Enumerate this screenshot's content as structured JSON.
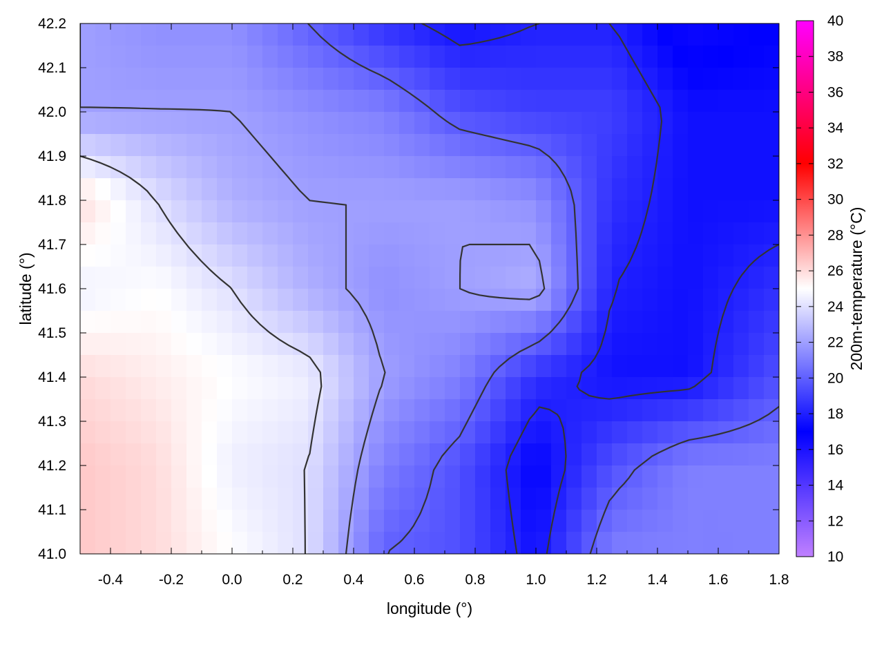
{
  "chart_data": {
    "type": "heatmap",
    "title": "",
    "xlabel": "longitude (°)",
    "ylabel": "latitude (°)",
    "colorbar_label": "200m-temperature (°C)",
    "xlim": [
      -0.5,
      1.8
    ],
    "ylim": [
      41.0,
      42.2
    ],
    "x_ticks": [
      {
        "value": -0.4,
        "label": "-0.4"
      },
      {
        "value": -0.2,
        "label": "-0.2"
      },
      {
        "value": 0.0,
        "label": "0.0"
      },
      {
        "value": 0.2,
        "label": "0.2"
      },
      {
        "value": 0.4,
        "label": "0.4"
      },
      {
        "value": 0.6,
        "label": "0.6"
      },
      {
        "value": 0.8,
        "label": "0.8"
      },
      {
        "value": 1.0,
        "label": "1.0"
      },
      {
        "value": 1.2,
        "label": "1.2"
      },
      {
        "value": 1.4,
        "label": "1.4"
      },
      {
        "value": 1.6,
        "label": "1.6"
      },
      {
        "value": 1.8,
        "label": "1.8"
      }
    ],
    "y_ticks": [
      {
        "value": 41.0,
        "label": "41.0"
      },
      {
        "value": 41.1,
        "label": "41.1"
      },
      {
        "value": 41.2,
        "label": "41.2"
      },
      {
        "value": 41.3,
        "label": "41.3"
      },
      {
        "value": 41.4,
        "label": "41.4"
      },
      {
        "value": 41.5,
        "label": "41.5"
      },
      {
        "value": 41.6,
        "label": "41.6"
      },
      {
        "value": 41.7,
        "label": "41.7"
      },
      {
        "value": 41.8,
        "label": "41.8"
      },
      {
        "value": 41.9,
        "label": "41.9"
      },
      {
        "value": 42.0,
        "label": "42.0"
      },
      {
        "value": 42.1,
        "label": "42.1"
      },
      {
        "value": 42.2,
        "label": "42.2"
      }
    ],
    "colorbar_ticks": [
      {
        "value": 10,
        "label": "10"
      },
      {
        "value": 12,
        "label": "12"
      },
      {
        "value": 14,
        "label": "14"
      },
      {
        "value": 16,
        "label": "16"
      },
      {
        "value": 18,
        "label": "18"
      },
      {
        "value": 20,
        "label": "20"
      },
      {
        "value": 22,
        "label": "22"
      },
      {
        "value": 24,
        "label": "24"
      },
      {
        "value": 26,
        "label": "26"
      },
      {
        "value": 28,
        "label": "28"
      },
      {
        "value": 30,
        "label": "30"
      },
      {
        "value": 32,
        "label": "32"
      },
      {
        "value": 34,
        "label": "34"
      },
      {
        "value": 36,
        "label": "36"
      },
      {
        "value": 38,
        "label": "38"
      },
      {
        "value": 40,
        "label": "40"
      }
    ],
    "zlim": [
      10,
      40
    ],
    "colormap": [
      {
        "value": 10,
        "color": "#c080ff"
      },
      {
        "value": 17,
        "color": "#0000ff"
      },
      {
        "value": 25,
        "color": "#ffffff"
      },
      {
        "value": 32,
        "color": "#ff0000"
      },
      {
        "value": 40,
        "color": "#ff00ff"
      }
    ],
    "contour_color": "#333333",
    "temperature_field": {
      "description_free": true,
      "x": [
        -0.5,
        -0.25,
        0.0,
        0.25,
        0.5,
        0.75,
        1.0,
        1.25,
        1.5,
        1.8
      ],
      "y": [
        41.0,
        41.2,
        41.4,
        41.6,
        41.8,
        42.0,
        42.2
      ],
      "z": [
        [
          26.5,
          26.0,
          25.0,
          24.0,
          20.0,
          19.5,
          17.5,
          21.0,
          21.0,
          21.0
        ],
        [
          26.5,
          26.0,
          24.5,
          24.0,
          21.0,
          19.5,
          17.0,
          19.5,
          21.0,
          21.0
        ],
        [
          26.0,
          25.5,
          25.0,
          24.5,
          22.0,
          21.0,
          18.5,
          17.5,
          17.5,
          19.5
        ],
        [
          24.5,
          25.0,
          24.0,
          22.5,
          21.5,
          22.0,
          22.5,
          18.0,
          17.5,
          18.5
        ],
        [
          26.0,
          24.0,
          22.5,
          22.0,
          22.0,
          22.0,
          21.5,
          18.5,
          17.5,
          17.5
        ],
        [
          22.0,
          22.0,
          22.0,
          21.5,
          21.0,
          19.5,
          19.0,
          19.0,
          17.5,
          17.5
        ],
        [
          22.0,
          21.5,
          21.5,
          20.0,
          18.5,
          17.5,
          18.0,
          18.0,
          16.5,
          17.0
        ]
      ]
    }
  }
}
